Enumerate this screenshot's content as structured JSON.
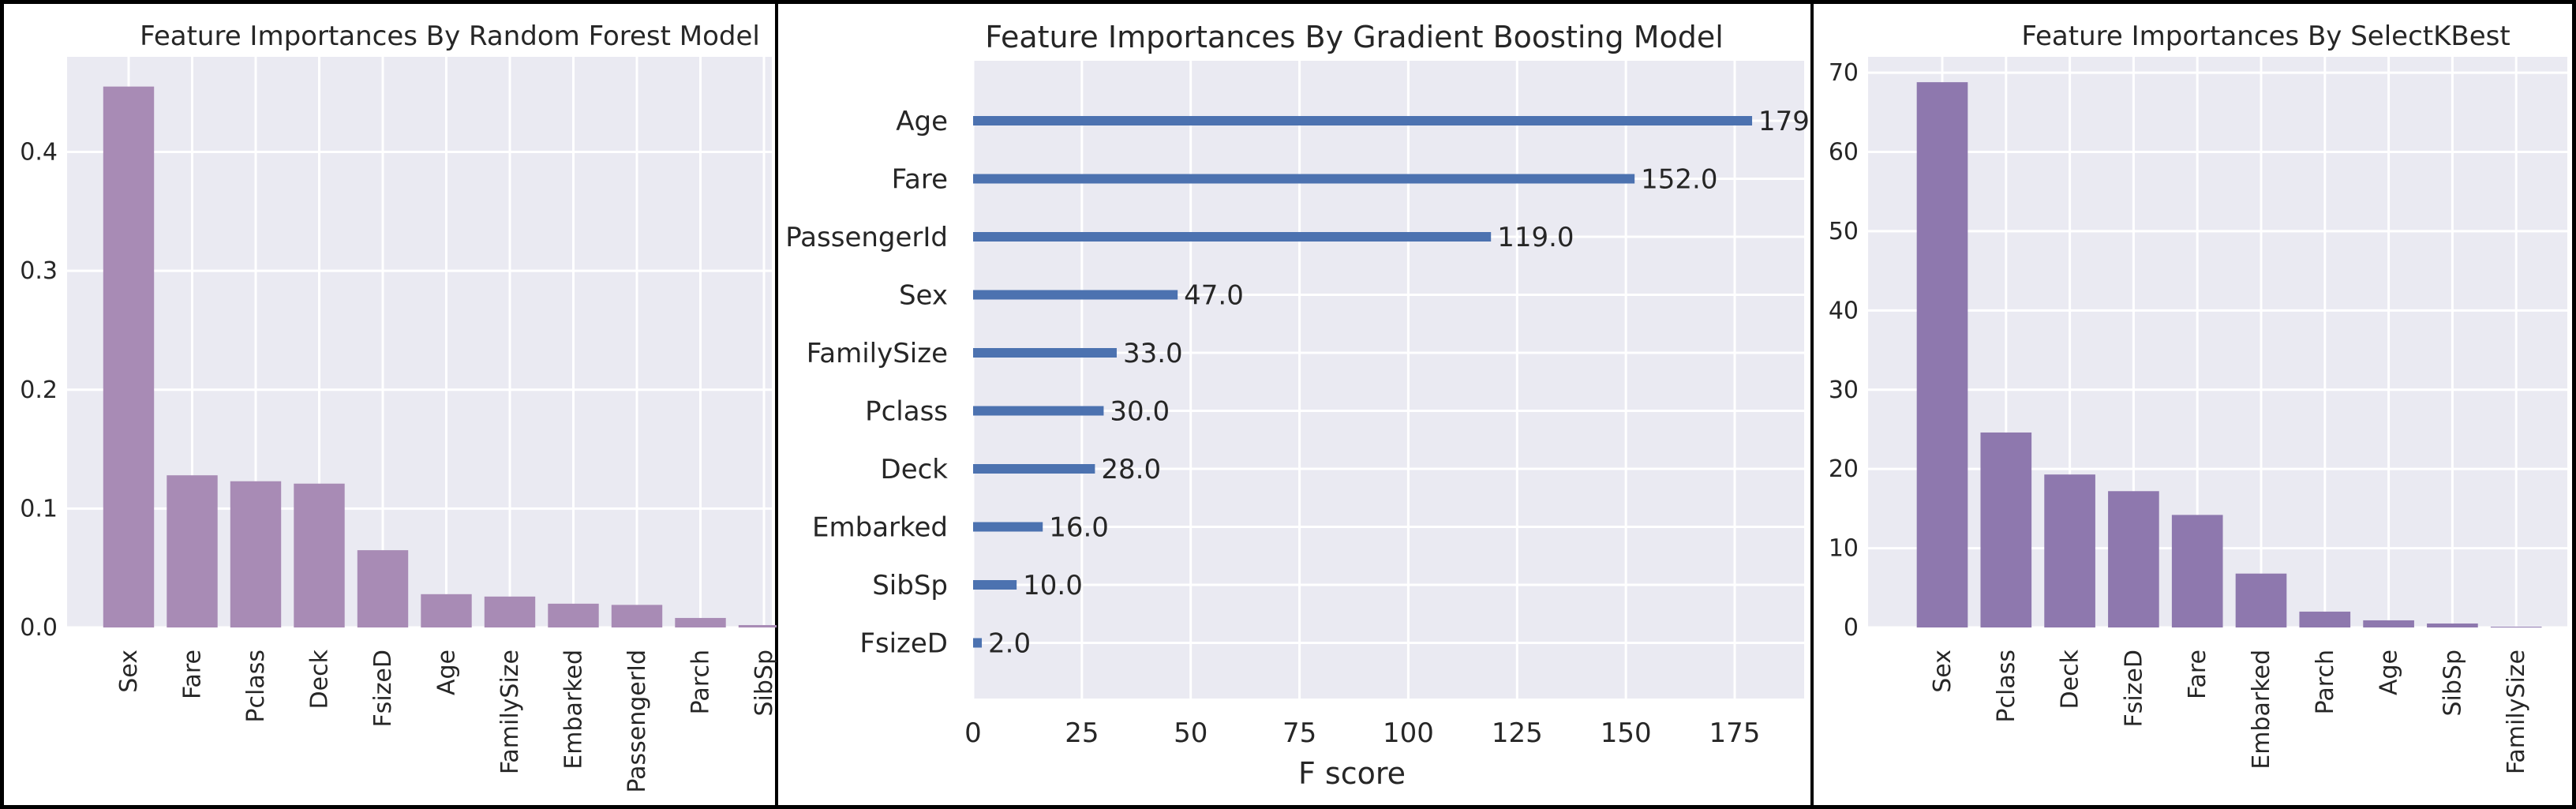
{
  "chart_data": [
    {
      "id": "rf",
      "type": "bar",
      "title": "Feature Importances By Random Forest Model",
      "categories": [
        "Sex",
        "Fare",
        "Pclass",
        "Deck",
        "FsizeD",
        "Age",
        "FamilySize",
        "Embarked",
        "PassengerId",
        "Parch",
        "SibSp"
      ],
      "values": [
        0.455,
        0.128,
        0.123,
        0.121,
        0.065,
        0.028,
        0.026,
        0.02,
        0.019,
        0.008,
        0.002
      ],
      "ylim": [
        0,
        0.48
      ],
      "yticks": [
        0.0,
        0.1,
        0.2,
        0.3,
        0.4
      ],
      "ytick_labels": [
        "0.0",
        "0.1",
        "0.2",
        "0.3",
        "0.4"
      ],
      "xlabel": "",
      "ylabel": "",
      "bar_color": "#a88bb5",
      "grid": true
    },
    {
      "id": "gb",
      "type": "bar",
      "orientation": "horizontal",
      "title": "Feature Importances By Gradient Boosting Model",
      "categories": [
        "Age",
        "Fare",
        "PassengerId",
        "Sex",
        "FamilySize",
        "Pclass",
        "Deck",
        "Embarked",
        "SibSp",
        "FsizeD"
      ],
      "values": [
        179,
        152,
        119,
        47,
        33,
        30,
        28,
        16,
        10,
        2
      ],
      "value_labels": [
        "179",
        "152.0",
        "119.0",
        "47.0",
        "33.0",
        "30.0",
        "28.0",
        "16.0",
        "10.0",
        "2.0"
      ],
      "xlim": [
        0,
        193
      ],
      "xticks": [
        0,
        25,
        50,
        75,
        100,
        125,
        150,
        175
      ],
      "xtick_labels": [
        "0",
        "25",
        "50",
        "75",
        "100",
        "125",
        "150",
        "175"
      ],
      "xlabel": "F score",
      "ylabel": "",
      "bar_color": "#4c72b0",
      "grid": true
    },
    {
      "id": "kb",
      "type": "bar",
      "title": "Feature Importances By SelectKBest",
      "categories": [
        "Sex",
        "Pclass",
        "Deck",
        "FsizeD",
        "Fare",
        "Embarked",
        "Parch",
        "Age",
        "SibSp",
        "FamilySize"
      ],
      "values": [
        68.8,
        24.6,
        19.3,
        17.2,
        14.2,
        6.8,
        2.0,
        0.9,
        0.5,
        0.1
      ],
      "ylim": [
        0,
        72
      ],
      "yticks": [
        0,
        10,
        20,
        30,
        40,
        50,
        60,
        70
      ],
      "ytick_labels": [
        "0",
        "10",
        "20",
        "30",
        "40",
        "50",
        "60",
        "70"
      ],
      "xlabel": "",
      "ylabel": "",
      "bar_color": "#8e78ae",
      "grid": true
    }
  ]
}
